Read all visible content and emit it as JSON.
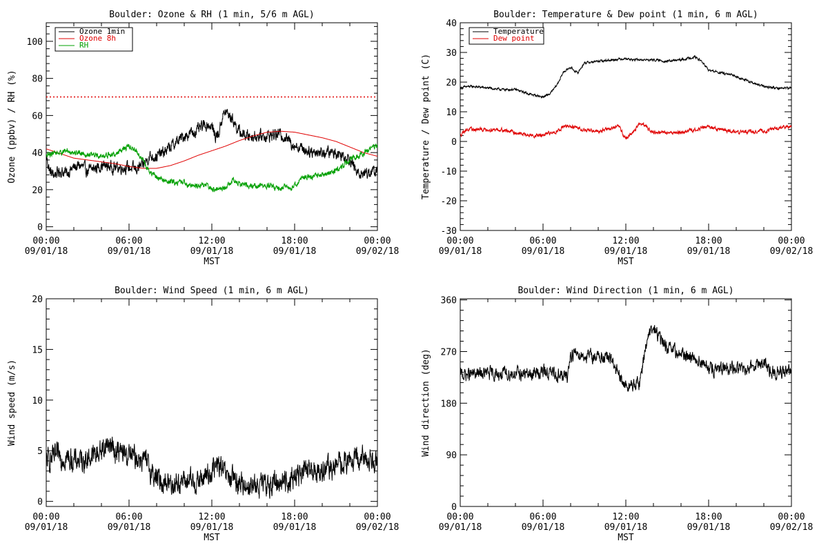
{
  "colors": {
    "black": "#000000",
    "red": "#e00000",
    "green": "#00a000",
    "background": "#ffffff"
  },
  "x_tick_labels": [
    {
      "time": "00:00",
      "date": "09/01/18"
    },
    {
      "time": "06:00",
      "date": "09/01/18"
    },
    {
      "time": "12:00",
      "date": "09/01/18"
    },
    {
      "time": "18:00",
      "date": "09/01/18"
    },
    {
      "time": "00:00",
      "date": "09/02/18"
    }
  ],
  "chart_data": [
    {
      "type": "line",
      "title": "Boulder: Ozone & RH (1 min, 5/6 m AGL)",
      "xlabel": "MST",
      "ylabel": "Ozone (ppbv) / RH (%)",
      "xlim": [
        0,
        24
      ],
      "ylim": [
        -2,
        110
      ],
      "yticks": [
        0,
        20,
        40,
        60,
        80,
        100
      ],
      "grid": false,
      "legend_position": "top-left",
      "reference_line": {
        "y": 70,
        "color": "#e00000",
        "style": "dotted"
      },
      "series": [
        {
          "name": "Ozone 1min",
          "color": "#000000",
          "noise": 2.5,
          "x": [
            0,
            0.25,
            0.5,
            1,
            1.5,
            2,
            2.5,
            3,
            4,
            5,
            6,
            6.5,
            7,
            7.5,
            8,
            8.5,
            9,
            10,
            11,
            11.5,
            11.75,
            12,
            12.25,
            12.5,
            12.75,
            13,
            13.5,
            14,
            14.5,
            15,
            16,
            17,
            18,
            19,
            20,
            21,
            22,
            22.5,
            23,
            24
          ],
          "y": [
            38,
            30,
            28,
            30,
            29,
            32,
            33,
            30,
            33,
            32,
            32,
            31,
            33,
            38,
            38,
            40,
            43,
            49,
            52,
            55,
            55,
            54,
            49,
            50,
            59,
            62,
            58,
            51,
            49,
            49,
            49,
            50,
            44,
            41,
            40,
            40,
            37,
            29,
            29,
            30
          ]
        },
        {
          "name": "Ozone 8h",
          "color": "#e00000",
          "noise": 0,
          "x": [
            0,
            1,
            2,
            3,
            4,
            5,
            6,
            7,
            8,
            9,
            10,
            11,
            12,
            13,
            14,
            15,
            16,
            17,
            18,
            19,
            20,
            21,
            22,
            23,
            24
          ],
          "y": [
            42,
            39.5,
            37,
            36,
            35,
            34,
            32.5,
            31.5,
            31.5,
            33,
            35.5,
            38.5,
            41,
            43.5,
            46.5,
            49,
            51,
            51.5,
            51,
            49.5,
            48,
            46,
            43,
            40,
            38
          ]
        },
        {
          "name": "RH",
          "color": "#00a000",
          "noise": 1.2,
          "x": [
            0,
            0.5,
            1,
            1.5,
            2,
            2.5,
            3,
            4,
            5,
            5.5,
            6,
            6.5,
            7,
            7.5,
            8,
            8.5,
            9,
            10,
            10.5,
            11,
            11.5,
            12,
            12.5,
            13,
            13.5,
            14,
            15,
            16,
            17,
            18,
            18.5,
            19,
            20,
            21,
            22,
            23,
            24
          ],
          "y": [
            38,
            40,
            40,
            41,
            40,
            40,
            39,
            38,
            39,
            42,
            43,
            41,
            36,
            29,
            27,
            25,
            24,
            24,
            22,
            22,
            23,
            20,
            20,
            21,
            25,
            23,
            22,
            22,
            21,
            22,
            26,
            27,
            28,
            30,
            36,
            40,
            44
          ]
        }
      ]
    },
    {
      "type": "line",
      "title": "Boulder: Temperature & Dew point (1 min, 6 m AGL)",
      "xlabel": "MST",
      "ylabel": "Temperature / Dew point (C)",
      "xlim": [
        0,
        24
      ],
      "ylim": [
        -30,
        40
      ],
      "yticks": [
        -30,
        -20,
        -10,
        0,
        10,
        20,
        30,
        40
      ],
      "grid": false,
      "legend_position": "top-left",
      "series": [
        {
          "name": "Temperature",
          "color": "#000000",
          "noise": 0.3,
          "x": [
            0,
            0.5,
            1,
            2,
            3,
            4,
            5,
            5.5,
            6,
            6.5,
            7,
            7.5,
            8,
            8.5,
            9,
            10,
            11,
            12,
            12.5,
            13,
            14,
            15,
            16,
            17,
            17.5,
            18,
            19,
            20,
            21,
            22,
            23,
            24
          ],
          "y": [
            18,
            18.5,
            18.5,
            18,
            17.5,
            17.5,
            16,
            15.5,
            15,
            16,
            19,
            23.5,
            25,
            23,
            26.5,
            27,
            27.5,
            28,
            27.5,
            27.5,
            27.5,
            27,
            27.5,
            28.5,
            27,
            24,
            23,
            22,
            20,
            18.5,
            18,
            18
          ]
        },
        {
          "name": "Dew point",
          "color": "#e00000",
          "noise": 0.5,
          "x": [
            0,
            0.25,
            0.5,
            1,
            2,
            3,
            4,
            5,
            6,
            7,
            7.5,
            8,
            9,
            10,
            11,
            11.5,
            12,
            12.5,
            13,
            13.5,
            14,
            15,
            16,
            17,
            18,
            19,
            20,
            21,
            22,
            23,
            24
          ],
          "y": [
            2,
            3.5,
            4,
            4,
            4,
            4,
            3,
            2,
            2,
            3.5,
            5,
            5,
            4,
            3.5,
            4.5,
            5,
            1,
            3,
            6,
            5,
            3,
            3,
            3,
            4,
            5,
            4,
            3,
            3.5,
            3.5,
            4.5,
            5
          ]
        }
      ]
    },
    {
      "type": "line",
      "title": "Boulder: Wind Speed (1 min, 6 m AGL)",
      "xlabel": "MST",
      "ylabel": "Wind speed (m/s)",
      "xlim": [
        0,
        24
      ],
      "ylim": [
        -0.5,
        20
      ],
      "yticks": [
        0,
        5,
        10,
        15,
        20
      ],
      "grid": false,
      "legend_position": "none",
      "series": [
        {
          "color": "#000000",
          "noise": 0.9,
          "x": [
            0,
            1,
            2,
            3,
            4,
            4.5,
            5,
            6,
            7,
            7.5,
            8,
            9,
            10,
            11,
            12,
            12.5,
            13,
            14,
            15,
            16,
            17,
            17.5,
            18,
            19,
            20,
            21,
            22,
            23,
            24
          ],
          "y": [
            4,
            4.5,
            4,
            4.2,
            5,
            5.8,
            5,
            4.5,
            4.2,
            3.2,
            2.2,
            1.8,
            2,
            1.9,
            3,
            3.6,
            2.5,
            1.8,
            1.5,
            1.6,
            2,
            2,
            2.5,
            3,
            3,
            3.5,
            4,
            4.2,
            4.2
          ]
        }
      ]
    },
    {
      "type": "line",
      "title": "Boulder: Wind Direction (1 min, 6 m AGL)",
      "xlabel": "MST",
      "ylabel": "Wind direction (deg)",
      "xlim": [
        0,
        24
      ],
      "ylim": [
        0,
        362
      ],
      "yticks": [
        0,
        90,
        180,
        270,
        360
      ],
      "grid": false,
      "legend_position": "none",
      "series": [
        {
          "color": "#000000",
          "noise": 9,
          "x": [
            0,
            1,
            2,
            3,
            4,
            5,
            6,
            7,
            7.75,
            8,
            8.5,
            9,
            10,
            11,
            11.5,
            12,
            12.5,
            13,
            13.5,
            14,
            15,
            16,
            17,
            18,
            19,
            20,
            21,
            22,
            22.5,
            23,
            24
          ],
          "y": [
            230,
            230,
            232,
            230,
            232,
            230,
            235,
            230,
            225,
            265,
            268,
            262,
            262,
            255,
            225,
            210,
            210,
            215,
            290,
            310,
            275,
            265,
            260,
            240,
            238,
            240,
            245,
            250,
            232,
            235,
            232
          ]
        }
      ]
    }
  ]
}
